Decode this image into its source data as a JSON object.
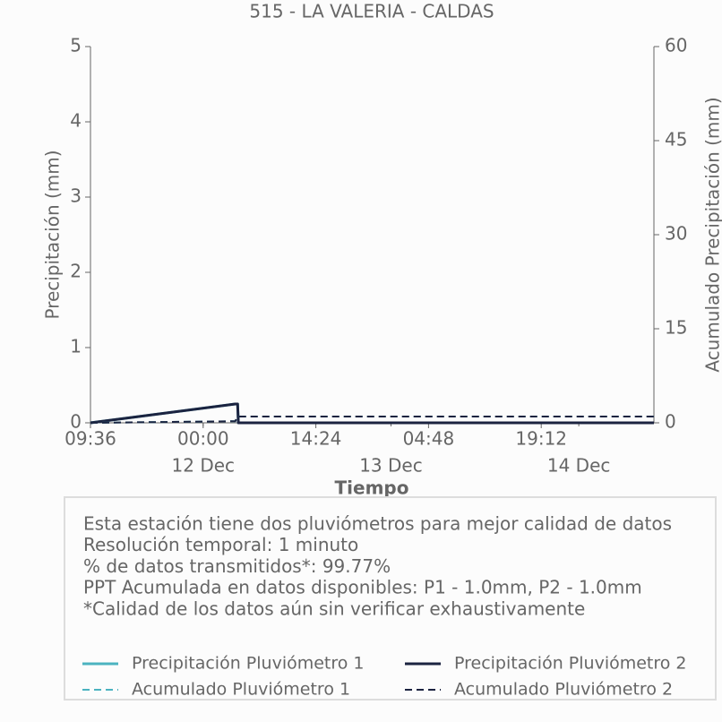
{
  "chart_data": {
    "type": "line",
    "title": "515 - LA VALERIA - CALDAS",
    "x_label": "Tiempo",
    "y_label": "Precipitación (mm)",
    "y2_label": "Acumulado Precipitación (mm)",
    "x": [
      0,
      18.5,
      18.6,
      18.7,
      18.8,
      18.9,
      72
    ],
    "xlim": [
      0,
      72
    ],
    "xticks": [
      {
        "value": 0,
        "label": "09:36"
      },
      {
        "value": 14.4,
        "label": "00:00"
      },
      {
        "value": 28.8,
        "label": "14:24"
      },
      {
        "value": 43.2,
        "label": "04:48"
      },
      {
        "value": 57.6,
        "label": "19:12"
      }
    ],
    "xticks_dates": [
      {
        "value": 14.4,
        "label": "12 Dec"
      },
      {
        "value": 38.4,
        "label": "13 Dec"
      },
      {
        "value": 62.4,
        "label": "14 Dec"
      }
    ],
    "ylim": [
      0,
      5
    ],
    "yticks": [
      0,
      1,
      2,
      3,
      4,
      5
    ],
    "y2lim": [
      0,
      60
    ],
    "y2ticks": [
      0,
      15,
      30,
      45,
      60
    ],
    "series": [
      {
        "name": "Precipitación Pluviómetro 1",
        "color": "#4bb3c0",
        "linestyle": "solid",
        "values": [
          0,
          0.25,
          0.25,
          0.25,
          0.25,
          0,
          0
        ]
      },
      {
        "name": "Precipitación Pluviómetro 2",
        "color": "#1b2340",
        "linestyle": "solid",
        "values": [
          0,
          0.25,
          0.25,
          0.25,
          0.25,
          0,
          0
        ]
      },
      {
        "name": "Acumulado Pluviómetro 1",
        "color": "#4bb3c0",
        "linestyle": "dashed",
        "axis": "y2",
        "values": [
          0,
          0.25,
          0.5,
          0.75,
          1.0,
          1.0,
          1.0
        ]
      },
      {
        "name": "Acumulado Pluviómetro 2",
        "color": "#1b2340",
        "linestyle": "dashed",
        "axis": "y2",
        "values": [
          0,
          0.25,
          0.5,
          0.75,
          1.0,
          1.0,
          1.0
        ]
      }
    ],
    "annotations": [
      "Esta estación tiene dos pluviómetros para mejor calidad de datos",
      "Resolución temporal: 1 minuto",
      "% de datos transmitidos*: 99.77%",
      "PPT Acumulada en datos disponibles: P1 - 1.0mm, P2 - 1.0mm",
      "*Calidad de los datos aún sin verificar exhaustivamente"
    ],
    "legend": "bottom",
    "grid": false
  }
}
